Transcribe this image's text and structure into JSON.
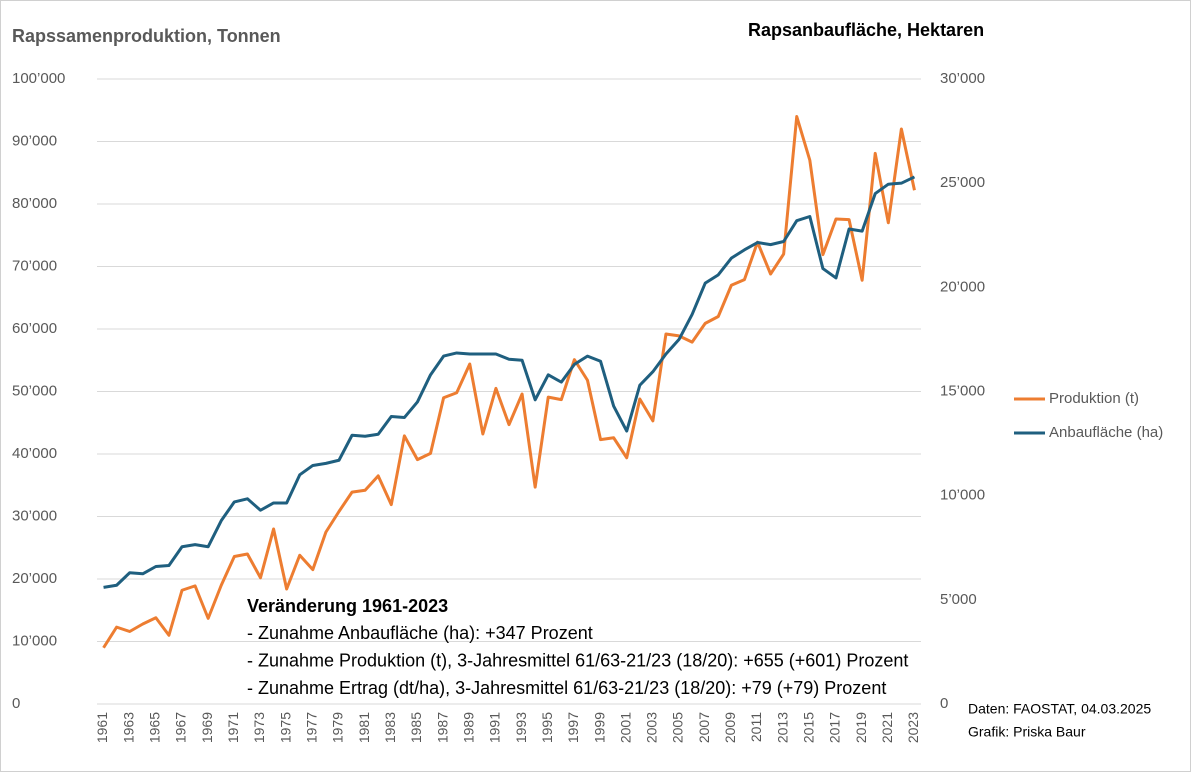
{
  "chart_data": {
    "type": "line",
    "ylabel": "Rapssamenproduktion, Tonnen",
    "y2label": "Rapsanbaufläche, Hektaren",
    "categories": [
      "1961",
      null,
      "1963",
      null,
      "1965",
      null,
      "1967",
      null,
      "1969",
      null,
      "1971",
      null,
      "1973",
      null,
      "1975",
      null,
      "1977",
      null,
      "1979",
      null,
      "1981",
      null,
      "1983",
      null,
      "1985",
      null,
      "1987",
      null,
      "1989",
      null,
      "1991",
      null,
      "1993",
      null,
      "1995",
      null,
      "1997",
      null,
      "1999",
      null,
      "2001",
      null,
      "2003",
      null,
      "2005",
      null,
      "2007",
      null,
      "2009",
      null,
      "2011",
      null,
      "2013",
      null,
      "2015",
      null,
      "2017",
      null,
      "2019",
      null,
      "2021",
      null,
      "2023"
    ],
    "series": [
      {
        "name": "Produktion (t)",
        "color": "#ed7d31",
        "values": [
          9000,
          12300,
          11600,
          12800,
          13800,
          11000,
          18200,
          18900,
          13700,
          19000,
          23600,
          24000,
          20200,
          28000,
          18400,
          23800,
          21500,
          27500,
          30800,
          33900,
          34200,
          36500,
          31900,
          42900,
          39100,
          40100,
          49000,
          49800,
          54400,
          43200,
          50500,
          44700,
          49600,
          34700,
          49100,
          48700,
          55100,
          51800,
          42300,
          42600,
          39400,
          48800,
          45300,
          59200,
          58900,
          57900,
          60900,
          62000,
          67000,
          67900,
          73900,
          68800,
          72000,
          94000,
          87000,
          71900,
          77600,
          77500,
          67800,
          88100,
          77000,
          92000,
          82200
        ]
      },
      {
        "name": "Anbaufläche (ha)",
        "color": "#1f5f7f",
        "axis": "y2",
        "values": [
          5600,
          5700,
          6300,
          6250,
          6600,
          6650,
          7550,
          7650,
          7550,
          8800,
          9700,
          9850,
          9300,
          9650,
          9650,
          11000,
          11450,
          11550,
          11700,
          12900,
          12850,
          12950,
          13800,
          13750,
          14500,
          15800,
          16700,
          16850,
          16800,
          16800,
          16800,
          16550,
          16500,
          14600,
          15800,
          15450,
          16300,
          16700,
          16450,
          14300,
          13100,
          15300,
          15950,
          16800,
          17500,
          18700,
          20200,
          20600,
          21400,
          21800,
          22150,
          22050,
          22200,
          23200,
          23400,
          20900,
          20450,
          22800,
          22700,
          24500,
          24950,
          25000,
          25300
        ]
      }
    ],
    "ylim": [
      0,
      100000
    ],
    "yticks": [
      0,
      {
        "value": 10000,
        "label": "10’000"
      },
      {
        "value": 20000,
        "label": "20’000"
      },
      {
        "value": 30000,
        "label": "30’000"
      },
      {
        "value": 40000,
        "label": "40’000"
      },
      {
        "value": 50000,
        "label": "50’000"
      },
      {
        "value": 60000,
        "label": "60’000"
      },
      {
        "value": 70000,
        "label": "70’000"
      },
      {
        "value": 80000,
        "label": "80’000"
      },
      {
        "value": 90000,
        "label": "90’000"
      },
      {
        "value": 100000,
        "label": "100’000"
      }
    ],
    "y2lim": [
      0,
      30000
    ],
    "y2ticks": [
      0,
      {
        "value": 5000,
        "label": "5’000"
      },
      {
        "value": 10000,
        "label": "10’000"
      },
      {
        "value": 15000,
        "label": "15’000"
      },
      {
        "value": 20000,
        "label": "20’000"
      },
      {
        "value": 25000,
        "label": "25’000"
      },
      {
        "value": 30000,
        "label": "30’000"
      }
    ],
    "grid": true,
    "legend": "right",
    "annotation": {
      "title": "Veränderung 1961-2023",
      "lines": [
        "- Zunahme Anbaufläche (ha): +347 Prozent",
        "- Zunahme Produktion (t), 3-Jahresmittel 61/63-21/23 (18/20): +655 (+601) Prozent",
        "- Zunahme Ertrag (dt/ha), 3-Jahresmittel 61/63-21/23 (18/20): +79 (+79) Prozent"
      ]
    },
    "source": [
      "Daten: FAOSTAT, 04.03.2025",
      "Grafik: Priska Baur"
    ]
  }
}
